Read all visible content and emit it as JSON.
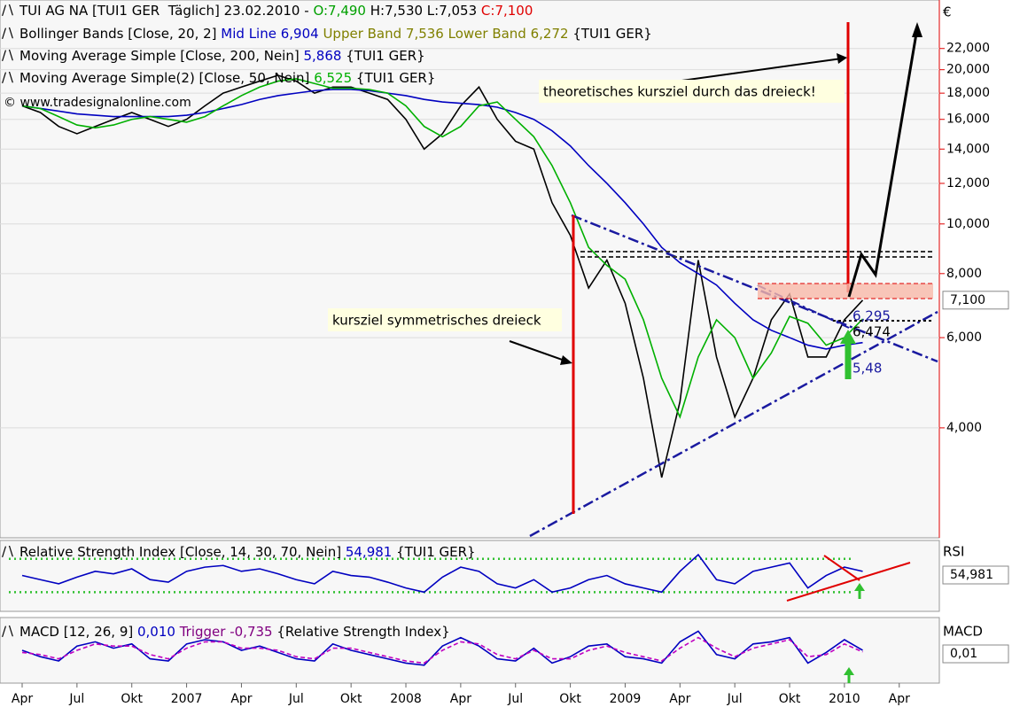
{
  "chart_data": [
    {
      "type": "line",
      "log_scale": true,
      "grid": true,
      "legend": [
        [
          {
            "text": "TUI AG NA [TUI1 GER  Täglich] 23.02.2010 - ",
            "color": "#000000"
          },
          {
            "text": "O:7,490",
            "color": "#00a000"
          },
          {
            "text": " H:7,530 L:7,053 ",
            "color": "#000000"
          },
          {
            "text": "C:7,100",
            "color": "#e00000"
          }
        ],
        [
          {
            "text": "Bollinger Bands [Close, 20, 2] ",
            "color": "#000000"
          },
          {
            "text": "Mid Line 6,904 ",
            "color": "#0000c0"
          },
          {
            "text": "Upper Band 7,536 Lower Band 6,272 ",
            "color": "#808000"
          },
          {
            "text": "{TUI1 GER}",
            "color": "#000000"
          }
        ],
        [
          {
            "text": "Moving Average Simple [Close, 200, Nein] ",
            "color": "#000000"
          },
          {
            "text": "5,868 ",
            "color": "#0000c0"
          },
          {
            "text": "{TUI1 GER}",
            "color": "#000000"
          }
        ],
        [
          {
            "text": "Moving Average Simple(2) [Close, 50, Nein] ",
            "color": "#000000"
          },
          {
            "text": "6,525 ",
            "color": "#00b000"
          },
          {
            "text": "{TUI1 GER}",
            "color": "#000000"
          }
        ]
      ],
      "watermark": "© www.tradesignalonline.com",
      "currency": "€",
      "annotations": [
        "theoretisches kursziel durch das dreieck!",
        "kursziel symmetrisches dreieck",
        "6,295",
        "6,474",
        "5,48"
      ],
      "last_price": {
        "value": 7.1,
        "label": "7,100"
      },
      "categories": [
        "Apr",
        null,
        null,
        "Jul",
        null,
        null,
        "Okt",
        null,
        null,
        "2007",
        null,
        null,
        "Apr",
        null,
        null,
        "Jul",
        null,
        null,
        "Okt",
        null,
        null,
        "2008",
        null,
        null,
        "Apr",
        null,
        null,
        "Jul",
        null,
        null,
        "Okt",
        null,
        null,
        "2009",
        null,
        null,
        "Apr",
        null,
        null,
        "Jul",
        null,
        null,
        "Okt",
        null,
        null,
        "2010",
        null,
        null,
        "Apr"
      ],
      "series": [
        {
          "color": "#000000",
          "values": [
            17,
            16.5,
            15.5,
            15,
            15.5,
            16,
            16.5,
            16,
            15.5,
            16,
            17,
            18,
            18.5,
            19,
            19.5,
            19,
            18,
            18.5,
            18.5,
            18,
            17.5,
            16,
            14,
            15,
            17,
            18.5,
            16,
            14.5,
            14,
            11,
            9.5,
            7.5,
            8.5,
            7,
            5,
            3.2,
            4.5,
            8.5,
            5.5,
            4.2,
            5,
            6.5,
            7.3,
            5.5,
            5.5,
            6.5,
            7.1,
            null,
            null
          ]
        },
        {
          "color": "#0000c0",
          "values": [
            17,
            16.8,
            16.6,
            16.4,
            16.3,
            16.2,
            16.2,
            16.2,
            16.2,
            16.3,
            16.5,
            16.8,
            17.1,
            17.5,
            17.8,
            18,
            18.2,
            18.3,
            18.3,
            18.2,
            18,
            17.8,
            17.5,
            17.3,
            17.2,
            17.1,
            16.9,
            16.5,
            16,
            15.2,
            14.2,
            13,
            12,
            11,
            10,
            9,
            8.4,
            8,
            7.6,
            7,
            6.5,
            6.2,
            6,
            5.8,
            5.7,
            5.8,
            5.868,
            null,
            null
          ]
        },
        {
          "color": "#00b000",
          "values": [
            17,
            16.8,
            16.2,
            15.6,
            15.4,
            15.6,
            16,
            16.2,
            16,
            15.8,
            16.2,
            17,
            17.8,
            18.5,
            19,
            19.2,
            18.8,
            18.4,
            18.4,
            18.3,
            18,
            17,
            15.5,
            14.8,
            15.5,
            17,
            17.3,
            16,
            14.8,
            13,
            11,
            9,
            8.3,
            7.8,
            6.5,
            5,
            4.2,
            5.5,
            6.5,
            6,
            5,
            5.6,
            6.6,
            6.4,
            5.8,
            6,
            6.525,
            null,
            null
          ]
        }
      ],
      "ylim": [
        2.46,
        26.5
      ],
      "yticks": [
        {
          "value": 4,
          "label": "4,000"
        },
        {
          "value": 6,
          "label": "6,000"
        },
        {
          "value": 8,
          "label": "8,000"
        },
        {
          "value": 10,
          "label": "10,000"
        },
        {
          "value": 12,
          "label": "12,000"
        },
        {
          "value": 14,
          "label": "14,000"
        },
        {
          "value": 16,
          "label": "16,000"
        },
        {
          "value": 18,
          "label": "18,000"
        },
        {
          "value": 20,
          "label": "20,000"
        },
        {
          "value": 22,
          "label": "22,000"
        }
      ]
    },
    {
      "type": "line",
      "axis_label": "RSI",
      "legend": [
        [
          {
            "text": "Relative Strength Index [Close, 14, 30, 70, Nein] ",
            "color": "#000000"
          },
          {
            "text": "54,981 ",
            "color": "#0000c0"
          },
          {
            "text": "{TUI1 GER}",
            "color": "#000000"
          }
        ]
      ],
      "last_value": {
        "value": 54.981,
        "label": "54,981"
      },
      "levels": [
        30,
        70
      ],
      "series": [
        {
          "color": "#0000c0",
          "values": [
            50,
            45,
            40,
            48,
            55,
            52,
            58,
            45,
            42,
            55,
            60,
            62,
            55,
            58,
            52,
            45,
            40,
            55,
            50,
            48,
            42,
            35,
            30,
            48,
            60,
            55,
            40,
            35,
            45,
            30,
            35,
            45,
            50,
            40,
            35,
            30,
            55,
            75,
            45,
            40,
            55,
            60,
            65,
            35,
            50,
            60,
            54.981,
            null,
            null
          ]
        }
      ],
      "ylim": [
        8,
        91
      ]
    },
    {
      "type": "line",
      "axis_label": "MACD",
      "legend": [
        [
          {
            "text": "MACD [12, 26, 9] ",
            "color": "#000000"
          },
          {
            "text": "0,010 ",
            "color": "#0000c0"
          },
          {
            "text": "Trigger -0,735 ",
            "color": "#800080"
          },
          {
            "text": "{Relative Strength Index}",
            "color": "#000000"
          }
        ]
      ],
      "last_value": {
        "value": 0.01,
        "label": "0,01"
      },
      "series": [
        {
          "color": "#0000c0",
          "values": [
            0,
            -3,
            -5,
            2,
            4,
            1,
            3,
            -4,
            -5,
            3,
            5,
            4,
            0,
            2,
            -1,
            -4,
            -5,
            3,
            0,
            -2,
            -4,
            -6,
            -7,
            2,
            6,
            2,
            -4,
            -5,
            1,
            -6,
            -3,
            2,
            3,
            -3,
            -4,
            -6,
            4,
            9,
            -2,
            -4,
            3,
            4,
            6,
            -6,
            -1,
            5,
            0.01,
            null,
            null
          ]
        },
        {
          "color": "#c000c0",
          "dashed": true,
          "values": [
            -1,
            -2,
            -4,
            0,
            3,
            2,
            2,
            -2,
            -4,
            1,
            4,
            4,
            1,
            1,
            0,
            -3,
            -4,
            1,
            1,
            -1,
            -3,
            -5,
            -6,
            0,
            4,
            3,
            -2,
            -4,
            0,
            -4,
            -4,
            0,
            2,
            -1,
            -3,
            -5,
            1,
            6,
            1,
            -3,
            1,
            3,
            5,
            -3,
            -2,
            3,
            -0.735,
            null,
            null
          ]
        }
      ],
      "ylim": [
        -15,
        15
      ]
    }
  ]
}
